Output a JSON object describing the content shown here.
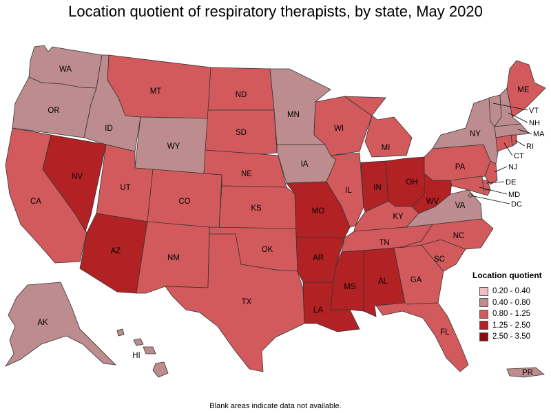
{
  "title": "Location quotient of respiratory therapists, by state, May 2020",
  "footnote": "Blank areas indicate data not available.",
  "colors": {
    "b1": "#f4bcc1",
    "b2": "#bd8c8e",
    "b3": "#d25a5c",
    "b4": "#b22224",
    "b5": "#880b0f"
  },
  "legend": {
    "title": "Location quotient",
    "items": [
      {
        "label": "0.20 - 0.40",
        "color": "#f4bcc1"
      },
      {
        "label": "0.40 - 0.80",
        "color": "#bd8c8e"
      },
      {
        "label": "0.80 - 1.25",
        "color": "#d25a5c"
      },
      {
        "label": "1.25 - 2.50",
        "color": "#b22224"
      },
      {
        "label": "2.50 - 3.50",
        "color": "#880b0f"
      }
    ]
  },
  "states": {
    "WA": {
      "label": "WA",
      "bin": "0.40 - 0.80"
    },
    "OR": {
      "label": "OR",
      "bin": "0.40 - 0.80"
    },
    "CA": {
      "label": "CA",
      "bin": "0.80 - 1.25"
    },
    "NV": {
      "label": "NV",
      "bin": "1.25 - 2.50"
    },
    "ID": {
      "label": "ID",
      "bin": "0.40 - 0.80"
    },
    "MT": {
      "label": "MT",
      "bin": "0.80 - 1.25"
    },
    "WY": {
      "label": "WY",
      "bin": "0.40 - 0.80"
    },
    "UT": {
      "label": "UT",
      "bin": "0.80 - 1.25"
    },
    "AZ": {
      "label": "AZ",
      "bin": "1.25 - 2.50"
    },
    "CO": {
      "label": "CO",
      "bin": "0.80 - 1.25"
    },
    "NM": {
      "label": "NM",
      "bin": "0.80 - 1.25"
    },
    "ND": {
      "label": "ND",
      "bin": "0.80 - 1.25"
    },
    "SD": {
      "label": "SD",
      "bin": "0.80 - 1.25"
    },
    "NE": {
      "label": "NE",
      "bin": "0.80 - 1.25"
    },
    "KS": {
      "label": "KS",
      "bin": "0.80 - 1.25"
    },
    "OK": {
      "label": "OK",
      "bin": "0.80 - 1.25"
    },
    "TX": {
      "label": "TX",
      "bin": "0.80 - 1.25"
    },
    "MN": {
      "label": "MN",
      "bin": "0.40 - 0.80"
    },
    "IA": {
      "label": "IA",
      "bin": "0.40 - 0.80"
    },
    "MO": {
      "label": "MO",
      "bin": "1.25 - 2.50"
    },
    "AR": {
      "label": "AR",
      "bin": "1.25 - 2.50"
    },
    "LA": {
      "label": "LA",
      "bin": "1.25 - 2.50"
    },
    "WI": {
      "label": "WI",
      "bin": "0.80 - 1.25"
    },
    "IL": {
      "label": "IL",
      "bin": "0.80 - 1.25"
    },
    "MI": {
      "label": "MI",
      "bin": "0.80 - 1.25"
    },
    "IN": {
      "label": "IN",
      "bin": "1.25 - 2.50"
    },
    "OH": {
      "label": "OH",
      "bin": "1.25 - 2.50"
    },
    "KY": {
      "label": "KY",
      "bin": "0.80 - 1.25"
    },
    "TN": {
      "label": "TN",
      "bin": "0.80 - 1.25"
    },
    "MS": {
      "label": "MS",
      "bin": "1.25 - 2.50"
    },
    "AL": {
      "label": "AL",
      "bin": "1.25 - 2.50"
    },
    "GA": {
      "label": "GA",
      "bin": "0.80 - 1.25"
    },
    "FL": {
      "label": "FL",
      "bin": "0.80 - 1.25"
    },
    "SC": {
      "label": "SC",
      "bin": "0.80 - 1.25"
    },
    "NC": {
      "label": "NC",
      "bin": "0.80 - 1.25"
    },
    "VA": {
      "label": "VA",
      "bin": "0.40 - 0.80"
    },
    "WV": {
      "label": "WV",
      "bin": "1.25 - 2.50"
    },
    "PA": {
      "label": "PA",
      "bin": "0.80 - 1.25"
    },
    "NY": {
      "label": "NY",
      "bin": "0.40 - 0.80"
    },
    "ME": {
      "label": "ME",
      "bin": "0.80 - 1.25"
    },
    "VT": {
      "label": "VT",
      "bin": "0.40 - 0.80"
    },
    "NH": {
      "label": "NH",
      "bin": "0.40 - 0.80"
    },
    "MA": {
      "label": "MA",
      "bin": "0.40 - 0.80"
    },
    "RI": {
      "label": "RI",
      "bin": "0.80 - 1.25"
    },
    "CT": {
      "label": "CT",
      "bin": "0.80 - 1.25"
    },
    "NJ": {
      "label": "NJ",
      "bin": "0.80 - 1.25"
    },
    "DE": {
      "label": "DE",
      "bin": "0.80 - 1.25"
    },
    "MD": {
      "label": "MD",
      "bin": "0.80 - 1.25"
    },
    "DC": {
      "label": "DC",
      "bin": "0.40 - 0.80"
    },
    "AK": {
      "label": "AK",
      "bin": "0.40 - 0.80"
    },
    "HI": {
      "label": "HI",
      "bin": "0.40 - 0.80"
    },
    "PR": {
      "label": "PR",
      "bin": "0.40 - 0.80"
    }
  }
}
